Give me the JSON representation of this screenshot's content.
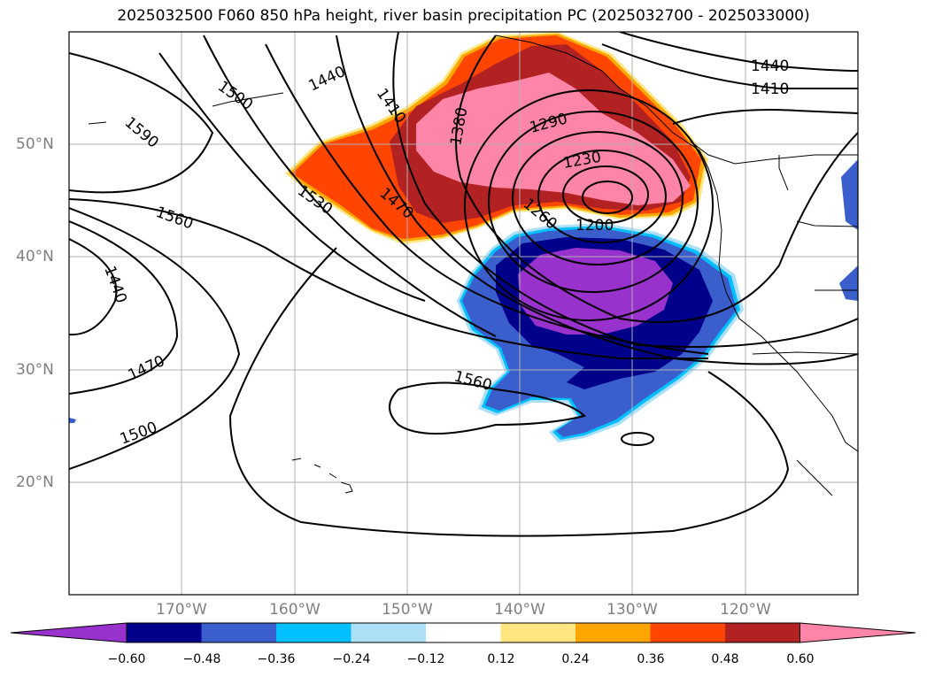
{
  "title": "2025032500 F060 850 hPa height, river basin precipitation PC (2025032700 - 2025033000)",
  "axes": {
    "lat_labels": [
      "50°N",
      "40°N",
      "30°N",
      "20°N"
    ],
    "lon_labels": [
      "170°W",
      "160°W",
      "150°W",
      "140°W",
      "130°W",
      "120°W"
    ],
    "lon_range": [
      -180,
      -110
    ],
    "lat_range": [
      10,
      60
    ],
    "grid": true
  },
  "colorbar": {
    "ticks": [
      "−0.60",
      "−0.48",
      "−0.36",
      "−0.24",
      "−0.12",
      "0.12",
      "0.24",
      "0.36",
      "0.48",
      "0.60"
    ],
    "colors": [
      "#9932CC",
      "#00008B",
      "#3A5FCD",
      "#00BFFF",
      "#ADDFF7",
      "#FFFFFF",
      "#FFE680",
      "#FFA500",
      "#FF4500",
      "#B22222",
      "#FF85A8"
    ],
    "extend": "both"
  },
  "contour_labels": [
    {
      "text": "1590"
    },
    {
      "text": "1500"
    },
    {
      "text": "1440"
    },
    {
      "text": "1410"
    },
    {
      "text": "1380"
    },
    {
      "text": "1290"
    },
    {
      "text": "1230"
    },
    {
      "text": "1200"
    },
    {
      "text": "1260"
    },
    {
      "text": "1470"
    },
    {
      "text": "1530"
    },
    {
      "text": "1560"
    },
    {
      "text": "1440"
    },
    {
      "text": "1470"
    },
    {
      "text": "1500"
    },
    {
      "text": "1560"
    },
    {
      "text": "1440"
    },
    {
      "text": "1410"
    }
  ]
}
